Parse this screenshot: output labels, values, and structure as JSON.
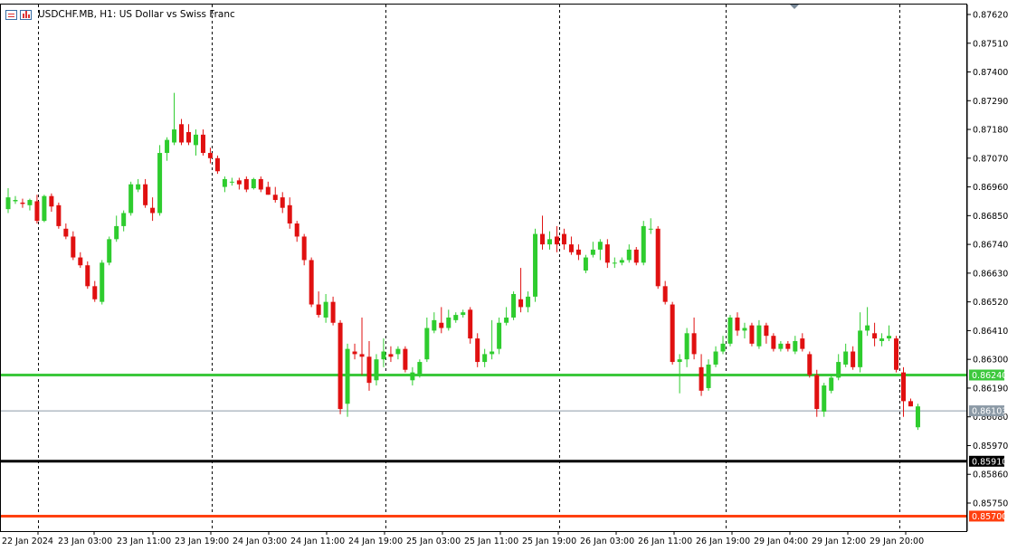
{
  "header": {
    "title": "USDCHF.MB, H1:  US Dollar vs Swiss Franc",
    "icons": [
      "list-icon",
      "bar-chart-icon"
    ]
  },
  "chart_data": {
    "type": "candlestick",
    "symbol": "USDCHF.MB",
    "timeframe": "H1",
    "description": "US Dollar vs Swiss Franc",
    "y_ticks": [
      "0.87620",
      "0.87510",
      "0.87400",
      "0.87290",
      "0.87180",
      "0.87070",
      "0.86960",
      "0.86850",
      "0.86740",
      "0.86630",
      "0.86520",
      "0.86410",
      "0.86300",
      "0.86190",
      "0.86080",
      "0.85970",
      "0.85860",
      "0.85750"
    ],
    "ylim": [
      0.8563,
      0.8765
    ],
    "x_ticks": [
      "22 Jan 2024",
      "23 Jan 03:00",
      "23 Jan 11:00",
      "23 Jan 19:00",
      "24 Jan 03:00",
      "24 Jan 11:00",
      "24 Jan 19:00",
      "25 Jan 03:00",
      "25 Jan 11:00",
      "25 Jan 19:00",
      "26 Jan 03:00",
      "26 Jan 11:00",
      "26 Jan 19:00",
      "29 Jan 04:00",
      "29 Jan 12:00",
      "29 Jan 20:00"
    ],
    "candles": [
      {
        "o": 0.86875,
        "h": 0.86955,
        "l": 0.8686,
        "c": 0.8692
      },
      {
        "o": 0.86905,
        "h": 0.86925,
        "l": 0.86895,
        "c": 0.8691
      },
      {
        "o": 0.869,
        "h": 0.86915,
        "l": 0.8688,
        "c": 0.86895
      },
      {
        "o": 0.8689,
        "h": 0.86915,
        "l": 0.8687,
        "c": 0.8691
      },
      {
        "o": 0.86905,
        "h": 0.8693,
        "l": 0.8682,
        "c": 0.8683
      },
      {
        "o": 0.8683,
        "h": 0.8693,
        "l": 0.86825,
        "c": 0.86925
      },
      {
        "o": 0.86925,
        "h": 0.86935,
        "l": 0.86865,
        "c": 0.86885
      },
      {
        "o": 0.8689,
        "h": 0.869,
        "l": 0.868,
        "c": 0.8681
      },
      {
        "o": 0.868,
        "h": 0.8682,
        "l": 0.8676,
        "c": 0.8677
      },
      {
        "o": 0.8677,
        "h": 0.8679,
        "l": 0.8668,
        "c": 0.8669
      },
      {
        "o": 0.8669,
        "h": 0.8671,
        "l": 0.8665,
        "c": 0.8666
      },
      {
        "o": 0.8666,
        "h": 0.86675,
        "l": 0.8657,
        "c": 0.8658
      },
      {
        "o": 0.8658,
        "h": 0.866,
        "l": 0.8652,
        "c": 0.8653
      },
      {
        "o": 0.8652,
        "h": 0.8668,
        "l": 0.8651,
        "c": 0.8667
      },
      {
        "o": 0.8667,
        "h": 0.8677,
        "l": 0.8666,
        "c": 0.8676
      },
      {
        "o": 0.8676,
        "h": 0.8685,
        "l": 0.8675,
        "c": 0.8681
      },
      {
        "o": 0.8681,
        "h": 0.8687,
        "l": 0.8679,
        "c": 0.8686
      },
      {
        "o": 0.8686,
        "h": 0.8698,
        "l": 0.8685,
        "c": 0.8697
      },
      {
        "o": 0.8695,
        "h": 0.8699,
        "l": 0.8694,
        "c": 0.8697
      },
      {
        "o": 0.8697,
        "h": 0.8699,
        "l": 0.8688,
        "c": 0.8689
      },
      {
        "o": 0.8688,
        "h": 0.8692,
        "l": 0.8683,
        "c": 0.8686
      },
      {
        "o": 0.8686,
        "h": 0.8712,
        "l": 0.8685,
        "c": 0.8709
      },
      {
        "o": 0.8709,
        "h": 0.8715,
        "l": 0.8706,
        "c": 0.8714
      },
      {
        "o": 0.8713,
        "h": 0.8732,
        "l": 0.8712,
        "c": 0.8718
      },
      {
        "o": 0.872,
        "h": 0.8722,
        "l": 0.8712,
        "c": 0.8713
      },
      {
        "o": 0.8717,
        "h": 0.872,
        "l": 0.8712,
        "c": 0.8713
      },
      {
        "o": 0.8712,
        "h": 0.8718,
        "l": 0.8708,
        "c": 0.8716
      },
      {
        "o": 0.8716,
        "h": 0.8718,
        "l": 0.8708,
        "c": 0.8709
      },
      {
        "o": 0.8709,
        "h": 0.8711,
        "l": 0.8705,
        "c": 0.8707
      },
      {
        "o": 0.8707,
        "h": 0.8708,
        "l": 0.8701,
        "c": 0.8702
      },
      {
        "o": 0.8696,
        "h": 0.87,
        "l": 0.8694,
        "c": 0.8699
      },
      {
        "o": 0.8698,
        "h": 0.86995,
        "l": 0.86965,
        "c": 0.8698
      },
      {
        "o": 0.86985,
        "h": 0.86995,
        "l": 0.8695,
        "c": 0.8697
      },
      {
        "o": 0.8699,
        "h": 0.87,
        "l": 0.8694,
        "c": 0.8695
      },
      {
        "o": 0.86955,
        "h": 0.86995,
        "l": 0.8695,
        "c": 0.8699
      },
      {
        "o": 0.8699,
        "h": 0.87,
        "l": 0.8694,
        "c": 0.8695
      },
      {
        "o": 0.8696,
        "h": 0.8698,
        "l": 0.8693,
        "c": 0.8693
      },
      {
        "o": 0.8693,
        "h": 0.8696,
        "l": 0.869,
        "c": 0.8691
      },
      {
        "o": 0.8692,
        "h": 0.8694,
        "l": 0.8686,
        "c": 0.8688
      },
      {
        "o": 0.8689,
        "h": 0.8692,
        "l": 0.868,
        "c": 0.8682
      },
      {
        "o": 0.8682,
        "h": 0.8683,
        "l": 0.8675,
        "c": 0.8677
      },
      {
        "o": 0.8677,
        "h": 0.8678,
        "l": 0.8666,
        "c": 0.8668
      },
      {
        "o": 0.8668,
        "h": 0.8669,
        "l": 0.865,
        "c": 0.8651
      },
      {
        "o": 0.8651,
        "h": 0.8656,
        "l": 0.8646,
        "c": 0.8647
      },
      {
        "o": 0.8646,
        "h": 0.8655,
        "l": 0.8644,
        "c": 0.8652
      },
      {
        "o": 0.8652,
        "h": 0.8654,
        "l": 0.8643,
        "c": 0.8644
      },
      {
        "o": 0.8644,
        "h": 0.8645,
        "l": 0.8609,
        "c": 0.8611
      },
      {
        "o": 0.8613,
        "h": 0.8636,
        "l": 0.8608,
        "c": 0.8634
      },
      {
        "o": 0.8633,
        "h": 0.8636,
        "l": 0.863,
        "c": 0.8632
      },
      {
        "o": 0.8632,
        "h": 0.8646,
        "l": 0.8624,
        "c": 0.8631
      },
      {
        "o": 0.8631,
        "h": 0.8637,
        "l": 0.8618,
        "c": 0.8621
      },
      {
        "o": 0.8622,
        "h": 0.8632,
        "l": 0.862,
        "c": 0.863
      },
      {
        "o": 0.863,
        "h": 0.8638,
        "l": 0.8627,
        "c": 0.8633
      },
      {
        "o": 0.8632,
        "h": 0.8635,
        "l": 0.8629,
        "c": 0.8631
      },
      {
        "o": 0.8632,
        "h": 0.8635,
        "l": 0.863,
        "c": 0.8634
      },
      {
        "o": 0.8634,
        "h": 0.8635,
        "l": 0.8625,
        "c": 0.8626
      },
      {
        "o": 0.8622,
        "h": 0.8627,
        "l": 0.862,
        "c": 0.8625
      },
      {
        "o": 0.8624,
        "h": 0.863,
        "l": 0.8623,
        "c": 0.8629
      },
      {
        "o": 0.863,
        "h": 0.8646,
        "l": 0.8629,
        "c": 0.8642
      },
      {
        "o": 0.8641,
        "h": 0.8648,
        "l": 0.864,
        "c": 0.8645
      },
      {
        "o": 0.8644,
        "h": 0.865,
        "l": 0.864,
        "c": 0.8642
      },
      {
        "o": 0.8642,
        "h": 0.8649,
        "l": 0.8641,
        "c": 0.8646
      },
      {
        "o": 0.8645,
        "h": 0.8648,
        "l": 0.8644,
        "c": 0.8647
      },
      {
        "o": 0.8647,
        "h": 0.8649,
        "l": 0.8646,
        "c": 0.8648
      },
      {
        "o": 0.8649,
        "h": 0.865,
        "l": 0.8636,
        "c": 0.8638
      },
      {
        "o": 0.8638,
        "h": 0.864,
        "l": 0.8627,
        "c": 0.8629
      },
      {
        "o": 0.8629,
        "h": 0.8634,
        "l": 0.8627,
        "c": 0.8632
      },
      {
        "o": 0.8632,
        "h": 0.8645,
        "l": 0.863,
        "c": 0.8633
      },
      {
        "o": 0.8634,
        "h": 0.8646,
        "l": 0.8632,
        "c": 0.8644
      },
      {
        "o": 0.8644,
        "h": 0.865,
        "l": 0.8643,
        "c": 0.8646
      },
      {
        "o": 0.8646,
        "h": 0.8656,
        "l": 0.8645,
        "c": 0.8655
      },
      {
        "o": 0.8653,
        "h": 0.8665,
        "l": 0.8648,
        "c": 0.865
      },
      {
        "o": 0.865,
        "h": 0.8656,
        "l": 0.8648,
        "c": 0.8654
      },
      {
        "o": 0.8654,
        "h": 0.868,
        "l": 0.8652,
        "c": 0.8678
      },
      {
        "o": 0.8678,
        "h": 0.8685,
        "l": 0.8672,
        "c": 0.8674
      },
      {
        "o": 0.8674,
        "h": 0.8679,
        "l": 0.8672,
        "c": 0.8676
      },
      {
        "o": 0.8677,
        "h": 0.8681,
        "l": 0.8671,
        "c": 0.8674
      },
      {
        "o": 0.8678,
        "h": 0.868,
        "l": 0.8672,
        "c": 0.8674
      },
      {
        "o": 0.8674,
        "h": 0.8677,
        "l": 0.867,
        "c": 0.8671
      },
      {
        "o": 0.8672,
        "h": 0.8674,
        "l": 0.8668,
        "c": 0.867
      },
      {
        "o": 0.8664,
        "h": 0.867,
        "l": 0.8663,
        "c": 0.8669
      },
      {
        "o": 0.867,
        "h": 0.8675,
        "l": 0.8669,
        "c": 0.8672
      },
      {
        "o": 0.8672,
        "h": 0.8676,
        "l": 0.8668,
        "c": 0.8675
      },
      {
        "o": 0.8674,
        "h": 0.8676,
        "l": 0.8665,
        "c": 0.8667
      },
      {
        "o": 0.8667,
        "h": 0.8669,
        "l": 0.8665,
        "c": 0.8667
      },
      {
        "o": 0.8667,
        "h": 0.8669,
        "l": 0.8666,
        "c": 0.8668
      },
      {
        "o": 0.8668,
        "h": 0.8674,
        "l": 0.8667,
        "c": 0.8672
      },
      {
        "o": 0.8672,
        "h": 0.8673,
        "l": 0.8666,
        "c": 0.8667
      },
      {
        "o": 0.8667,
        "h": 0.8683,
        "l": 0.8666,
        "c": 0.8681
      },
      {
        "o": 0.868,
        "h": 0.8684,
        "l": 0.8678,
        "c": 0.868
      },
      {
        "o": 0.868,
        "h": 0.8681,
        "l": 0.8657,
        "c": 0.8658
      },
      {
        "o": 0.8658,
        "h": 0.866,
        "l": 0.8651,
        "c": 0.8652
      },
      {
        "o": 0.8651,
        "h": 0.8652,
        "l": 0.8628,
        "c": 0.8629
      },
      {
        "o": 0.8629,
        "h": 0.8632,
        "l": 0.8617,
        "c": 0.863
      },
      {
        "o": 0.863,
        "h": 0.8642,
        "l": 0.8627,
        "c": 0.864
      },
      {
        "o": 0.864,
        "h": 0.8646,
        "l": 0.863,
        "c": 0.8632
      },
      {
        "o": 0.8627,
        "h": 0.8632,
        "l": 0.8616,
        "c": 0.8618
      },
      {
        "o": 0.8619,
        "h": 0.863,
        "l": 0.8618,
        "c": 0.8628
      },
      {
        "o": 0.8628,
        "h": 0.8635,
        "l": 0.8627,
        "c": 0.8633
      },
      {
        "o": 0.8633,
        "h": 0.8639,
        "l": 0.8632,
        "c": 0.8636
      },
      {
        "o": 0.8636,
        "h": 0.8647,
        "l": 0.8635,
        "c": 0.8646
      },
      {
        "o": 0.8646,
        "h": 0.8648,
        "l": 0.8639,
        "c": 0.8641
      },
      {
        "o": 0.8641,
        "h": 0.8644,
        "l": 0.8638,
        "c": 0.8642
      },
      {
        "o": 0.8643,
        "h": 0.8644,
        "l": 0.8635,
        "c": 0.8636
      },
      {
        "o": 0.8635,
        "h": 0.8645,
        "l": 0.8634,
        "c": 0.8643
      },
      {
        "o": 0.8643,
        "h": 0.8644,
        "l": 0.8636,
        "c": 0.8639
      },
      {
        "o": 0.8639,
        "h": 0.864,
        "l": 0.8633,
        "c": 0.8634
      },
      {
        "o": 0.8634,
        "h": 0.8637,
        "l": 0.8633,
        "c": 0.8636
      },
      {
        "o": 0.8636,
        "h": 0.8637,
        "l": 0.8633,
        "c": 0.8634
      },
      {
        "o": 0.8633,
        "h": 0.8639,
        "l": 0.8632,
        "c": 0.8637
      },
      {
        "o": 0.8638,
        "h": 0.864,
        "l": 0.8633,
        "c": 0.8634
      },
      {
        "o": 0.8632,
        "h": 0.8633,
        "l": 0.8623,
        "c": 0.8624
      },
      {
        "o": 0.8624,
        "h": 0.8626,
        "l": 0.8608,
        "c": 0.8611
      },
      {
        "o": 0.861,
        "h": 0.8621,
        "l": 0.8608,
        "c": 0.862
      },
      {
        "o": 0.8618,
        "h": 0.8624,
        "l": 0.8617,
        "c": 0.8623
      },
      {
        "o": 0.8623,
        "h": 0.8632,
        "l": 0.8622,
        "c": 0.8629
      },
      {
        "o": 0.8628,
        "h": 0.8636,
        "l": 0.8627,
        "c": 0.8633
      },
      {
        "o": 0.8633,
        "h": 0.8635,
        "l": 0.8626,
        "c": 0.8627
      },
      {
        "o": 0.8627,
        "h": 0.8648,
        "l": 0.8625,
        "c": 0.8641
      },
      {
        "o": 0.8641,
        "h": 0.865,
        "l": 0.8639,
        "c": 0.8643
      },
      {
        "o": 0.864,
        "h": 0.8644,
        "l": 0.8635,
        "c": 0.8638
      },
      {
        "o": 0.8637,
        "h": 0.864,
        "l": 0.8635,
        "c": 0.8638
      },
      {
        "o": 0.8638,
        "h": 0.8643,
        "l": 0.8637,
        "c": 0.8639
      },
      {
        "o": 0.8638,
        "h": 0.8639,
        "l": 0.8625,
        "c": 0.8626
      },
      {
        "o": 0.8625,
        "h": 0.8627,
        "l": 0.8608,
        "c": 0.8614
      },
      {
        "o": 0.8614,
        "h": 0.8615,
        "l": 0.8612,
        "c": 0.8612
      },
      {
        "o": 0.8604,
        "h": 0.8613,
        "l": 0.8603,
        "c": 0.8612
      }
    ],
    "horizontal_lines": [
      {
        "price": 0.8624,
        "label": "0.86240",
        "color": "#3cc83c"
      },
      {
        "price": 0.86103,
        "label": "0.86103",
        "color": "#8c9aa6"
      },
      {
        "price": 0.8591,
        "label": "0.85910",
        "color": "#000000"
      },
      {
        "price": 0.857,
        "label": "0.85700",
        "color": "#ff4010"
      }
    ],
    "colors": {
      "bull": "#2ecc2e",
      "bear": "#e01010",
      "grid": "#000000",
      "background": "#ffffff"
    }
  }
}
